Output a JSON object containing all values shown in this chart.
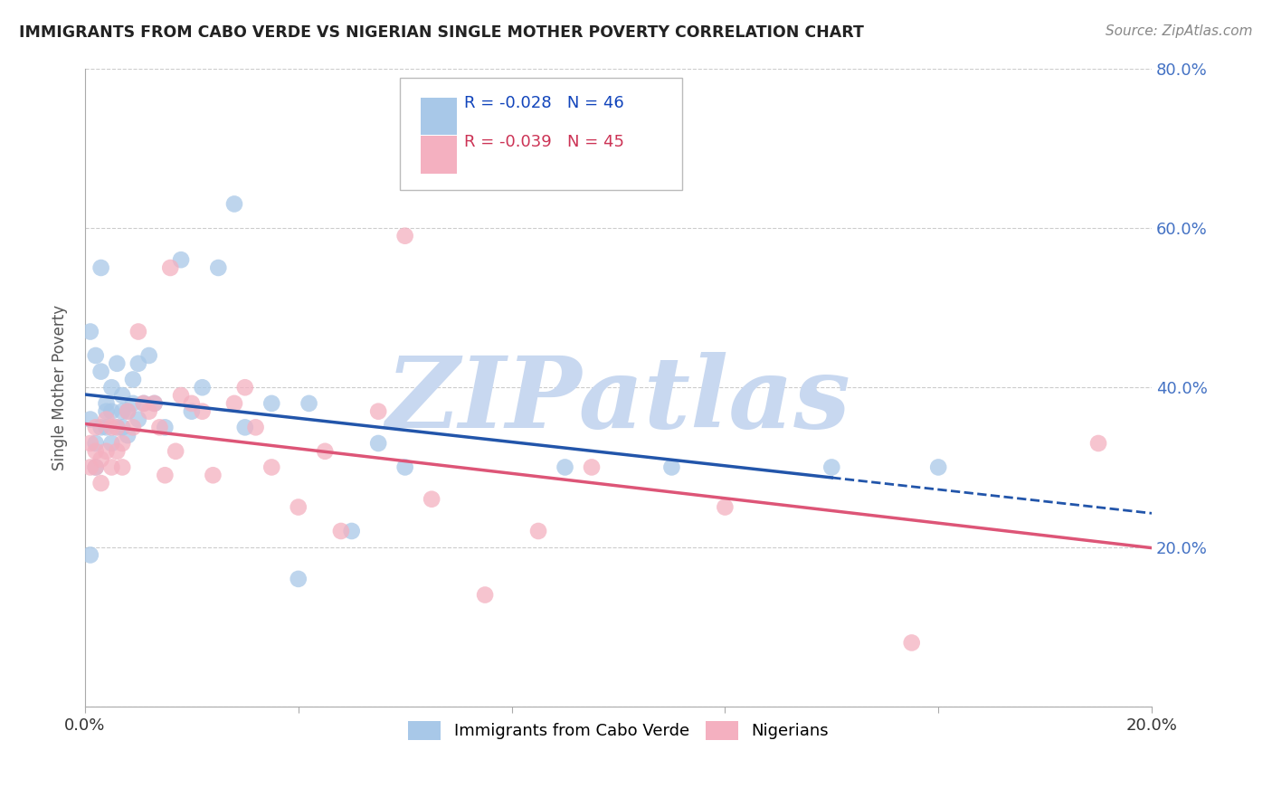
{
  "title": "IMMIGRANTS FROM CABO VERDE VS NIGERIAN SINGLE MOTHER POVERTY CORRELATION CHART",
  "source": "Source: ZipAtlas.com",
  "ylabel": "Single Mother Poverty",
  "cabo_verde_label": "Immigrants from Cabo Verde",
  "nigerian_label": "Nigerians",
  "cabo_verde_R": "-0.028",
  "cabo_verde_N": "46",
  "nigerian_R": "-0.039",
  "nigerian_N": "45",
  "cabo_verde_color": "#A8C8E8",
  "nigerian_color": "#F4B0C0",
  "cabo_verde_line_color": "#2255AA",
  "nigerian_line_color": "#DD5577",
  "background_color": "#ffffff",
  "watermark": "ZIPatlas",
  "watermark_color": "#C8D8F0",
  "xlim": [
    0,
    0.2
  ],
  "ylim": [
    0,
    0.8
  ],
  "cabo_verde_x": [
    0.001,
    0.001,
    0.001,
    0.002,
    0.002,
    0.002,
    0.003,
    0.003,
    0.003,
    0.004,
    0.004,
    0.004,
    0.005,
    0.005,
    0.005,
    0.006,
    0.006,
    0.007,
    0.007,
    0.007,
    0.008,
    0.008,
    0.009,
    0.009,
    0.01,
    0.01,
    0.011,
    0.012,
    0.013,
    0.015,
    0.018,
    0.02,
    0.022,
    0.025,
    0.028,
    0.03,
    0.035,
    0.04,
    0.042,
    0.05,
    0.055,
    0.06,
    0.09,
    0.11,
    0.14,
    0.16
  ],
  "cabo_verde_y": [
    0.47,
    0.36,
    0.19,
    0.33,
    0.44,
    0.3,
    0.35,
    0.42,
    0.55,
    0.37,
    0.38,
    0.35,
    0.4,
    0.37,
    0.33,
    0.43,
    0.35,
    0.39,
    0.37,
    0.35,
    0.37,
    0.34,
    0.41,
    0.38,
    0.43,
    0.36,
    0.38,
    0.44,
    0.38,
    0.35,
    0.56,
    0.37,
    0.4,
    0.55,
    0.63,
    0.35,
    0.38,
    0.16,
    0.38,
    0.22,
    0.33,
    0.3,
    0.3,
    0.3,
    0.3,
    0.3
  ],
  "nigerian_x": [
    0.001,
    0.001,
    0.002,
    0.002,
    0.002,
    0.003,
    0.003,
    0.004,
    0.004,
    0.005,
    0.005,
    0.006,
    0.006,
    0.007,
    0.007,
    0.008,
    0.009,
    0.01,
    0.011,
    0.012,
    0.013,
    0.014,
    0.015,
    0.016,
    0.017,
    0.018,
    0.02,
    0.022,
    0.024,
    0.028,
    0.03,
    0.032,
    0.035,
    0.04,
    0.045,
    0.048,
    0.055,
    0.06,
    0.065,
    0.075,
    0.085,
    0.095,
    0.12,
    0.155,
    0.19
  ],
  "nigerian_y": [
    0.33,
    0.3,
    0.35,
    0.32,
    0.3,
    0.31,
    0.28,
    0.36,
    0.32,
    0.35,
    0.3,
    0.32,
    0.35,
    0.33,
    0.3,
    0.37,
    0.35,
    0.47,
    0.38,
    0.37,
    0.38,
    0.35,
    0.29,
    0.55,
    0.32,
    0.39,
    0.38,
    0.37,
    0.29,
    0.38,
    0.4,
    0.35,
    0.3,
    0.25,
    0.32,
    0.22,
    0.37,
    0.59,
    0.26,
    0.14,
    0.22,
    0.3,
    0.25,
    0.08,
    0.33
  ],
  "x_ticks": [
    0.0,
    0.04,
    0.08,
    0.12,
    0.16,
    0.2
  ],
  "y_ticks": [
    0.0,
    0.2,
    0.4,
    0.6,
    0.8
  ]
}
